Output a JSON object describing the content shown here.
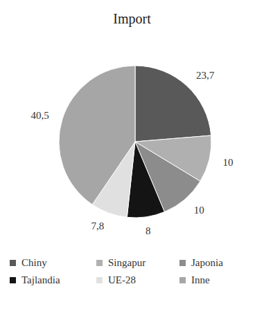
{
  "chart_data": {
    "type": "pie",
    "title": "Import",
    "categories": [
      "Chiny",
      "Singapur",
      "Japonia",
      "Tajlandia",
      "UE-28",
      "Inne"
    ],
    "values": [
      23.7,
      10,
      10,
      8,
      7.8,
      40.5
    ],
    "value_labels": [
      "23,7",
      "10",
      "10",
      "8",
      "7,8",
      "40,5"
    ],
    "colors": [
      "#595959",
      "#b0b0b0",
      "#8c8c8c",
      "#141414",
      "#e0e0e0",
      "#a6a6a6"
    ],
    "data_labels": true,
    "legend": "bottom"
  }
}
